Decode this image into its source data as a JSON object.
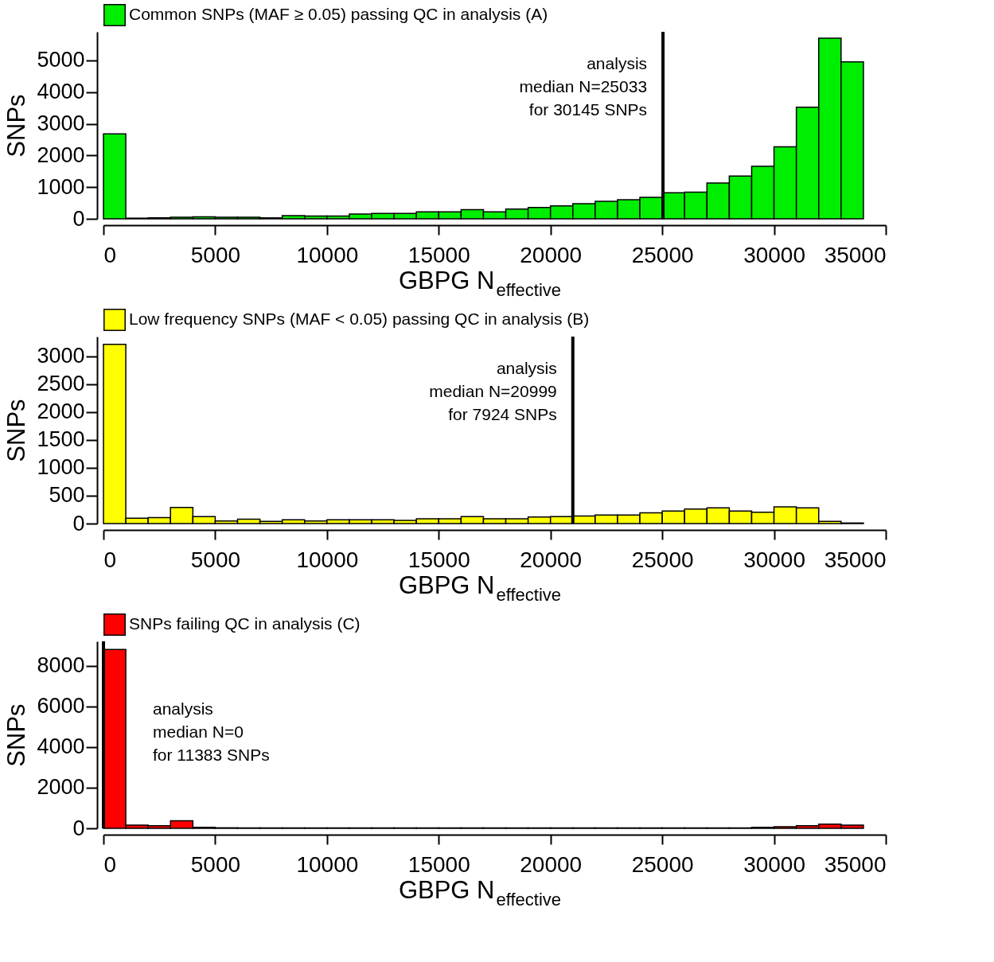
{
  "chart_data": [
    {
      "type": "histogram",
      "xlabel": "GBPG N$_{effective}$",
      "ylabel": "SNPs",
      "xlim": [
        0,
        35000
      ],
      "xticks": [
        0,
        5000,
        10000,
        15000,
        20000,
        25000,
        30000,
        35000
      ],
      "ylim": [
        0,
        5900
      ],
      "yticks": [
        0,
        1000,
        2000,
        3000,
        4000,
        5000
      ],
      "grid": false,
      "legend": "top",
      "bins": [
        0,
        1000,
        2000,
        3000,
        4000,
        5000,
        6000,
        7000,
        8000,
        9000,
        10000,
        11000,
        12000,
        13000,
        14000,
        15000,
        16000,
        17000,
        18000,
        19000,
        20000,
        21000,
        22000,
        23000,
        24000,
        25000,
        26000,
        27000,
        28000,
        29000,
        30000,
        31000,
        32000,
        33000,
        34000
      ],
      "series": [
        {
          "name": "Common SNPs (MAF ≥ 0.05) passing QC in analysis (A)",
          "color": "#00ee00",
          "values": [
            2680,
            20,
            30,
            50,
            60,
            50,
            50,
            30,
            100,
            90,
            90,
            150,
            170,
            170,
            220,
            220,
            290,
            220,
            310,
            360,
            410,
            480,
            550,
            600,
            680,
            820,
            840,
            1130,
            1350,
            1660,
            2270,
            3520,
            5700,
            4950
          ]
        }
      ],
      "ref_lines": [
        {
          "axis": "x",
          "value": 25033
        }
      ],
      "annotations": [
        "analysis\nmedian N=25033\nfor 30145 SNPs"
      ]
    },
    {
      "type": "histogram",
      "xlabel": "GBPG N$_{effective}$",
      "ylabel": "SNPs",
      "xlim": [
        0,
        35000
      ],
      "xticks": [
        0,
        5000,
        10000,
        15000,
        20000,
        25000,
        30000,
        35000
      ],
      "ylim": [
        0,
        3350
      ],
      "yticks": [
        0,
        500,
        1000,
        1500,
        2000,
        2500,
        3000
      ],
      "grid": false,
      "legend": "top",
      "bins": [
        0,
        1000,
        2000,
        3000,
        4000,
        5000,
        6000,
        7000,
        8000,
        9000,
        10000,
        11000,
        12000,
        13000,
        14000,
        15000,
        16000,
        17000,
        18000,
        19000,
        20000,
        21000,
        22000,
        23000,
        24000,
        25000,
        26000,
        27000,
        28000,
        29000,
        30000,
        31000,
        32000,
        33000,
        34000
      ],
      "series": [
        {
          "name": "Low frequency SNPs (MAF < 0.05) passing QC in analysis (B)",
          "color": "#ffff00",
          "values": [
            3210,
            97,
            106,
            290,
            126,
            48,
            77,
            39,
            68,
            48,
            68,
            68,
            68,
            58,
            87,
            87,
            126,
            87,
            87,
            116,
            126,
            136,
            155,
            155,
            194,
            223,
            261,
            281,
            223,
            203,
            300,
            281,
            39,
            10
          ]
        }
      ],
      "ref_lines": [
        {
          "axis": "x",
          "value": 20999
        }
      ],
      "annotations": [
        "analysis\nmedian N=20999\nfor 7924 SNPs"
      ]
    },
    {
      "type": "histogram",
      "xlabel": "GBPG N$_{effective}$",
      "ylabel": "SNPs",
      "xlim": [
        0,
        35000
      ],
      "xticks": [
        0,
        5000,
        10000,
        15000,
        20000,
        25000,
        30000,
        35000
      ],
      "ylim": [
        0,
        9200
      ],
      "yticks": [
        0,
        2000,
        4000,
        6000,
        8000
      ],
      "grid": false,
      "legend": "top",
      "bins": [
        0,
        1000,
        2000,
        3000,
        4000,
        5000,
        6000,
        7000,
        8000,
        9000,
        10000,
        11000,
        12000,
        13000,
        14000,
        15000,
        16000,
        17000,
        18000,
        19000,
        20000,
        21000,
        22000,
        23000,
        24000,
        25000,
        26000,
        27000,
        28000,
        29000,
        30000,
        31000,
        32000,
        33000,
        34000
      ],
      "series": [
        {
          "name": "SNPs failing QC in analysis (C)",
          "color": "#ff0000",
          "values": [
            8800,
            160,
            130,
            370,
            50,
            25,
            20,
            20,
            20,
            20,
            20,
            20,
            20,
            20,
            20,
            20,
            20,
            20,
            20,
            20,
            20,
            20,
            20,
            20,
            20,
            20,
            20,
            20,
            20,
            50,
            80,
            130,
            210,
            160
          ]
        }
      ],
      "ref_lines": [
        {
          "axis": "x",
          "value": 0
        }
      ],
      "annotations": [
        "analysis\nmedian N=0\nfor 11383 SNPs"
      ]
    }
  ]
}
